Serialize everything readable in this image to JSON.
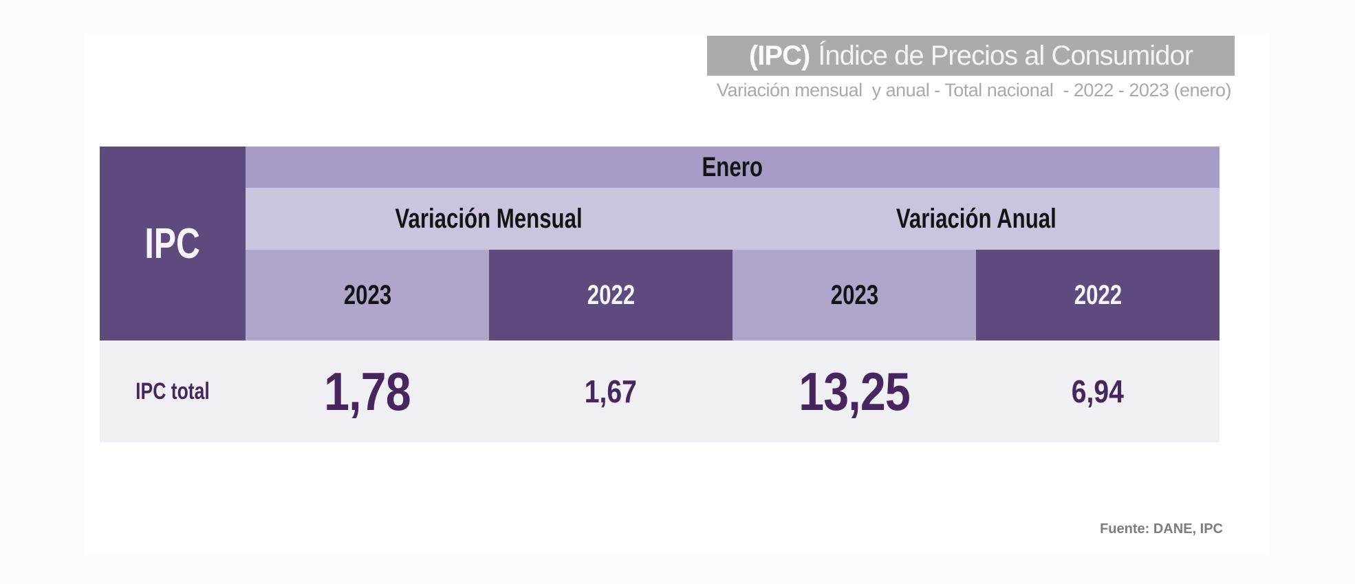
{
  "header": {
    "title_bold": "(IPC)",
    "title_rest": "Índice de Precios al Consumidor",
    "subtitle": "Variación mensual  y anual - Total nacional  - 2022 - 2023 (enero)"
  },
  "table": {
    "corner_label": "IPC",
    "month_header": "Enero",
    "group_headers": [
      "Variación Mensual",
      "Variación Anual"
    ],
    "year_headers": [
      "2023",
      "2022",
      "2023",
      "2022"
    ],
    "data_row": {
      "label": "IPC total",
      "values": [
        "1,78",
        "1,67",
        "13,25",
        "6,94"
      ]
    }
  },
  "footer": {
    "source": "Fuente: DANE, IPC"
  },
  "colors": {
    "dark_purple": "#5e4b7d",
    "medium_purple": "#a89bc5",
    "light_purple": "#ccc4df",
    "year_light_purple": "#b2a5cb",
    "data_row_bg": "#f0eff3",
    "value_text": "#46265c",
    "title_banner_bg": "#ababab"
  },
  "chart_data": {
    "type": "table",
    "title": "(IPC) Índice de Precios al Consumidor",
    "subtitle": "Variación mensual  y anual - Total nacional  - 2022 - 2023 (enero)",
    "month": "Enero",
    "column_groups": [
      "Variación Mensual",
      "Variación Anual"
    ],
    "columns": [
      "Variación Mensual 2023",
      "Variación Mensual 2022",
      "Variación Anual 2023",
      "Variación Anual 2022"
    ],
    "rows": [
      {
        "label": "IPC total",
        "values": [
          1.78,
          1.67,
          13.25,
          6.94
        ]
      }
    ],
    "source": "Fuente: DANE, IPC"
  }
}
